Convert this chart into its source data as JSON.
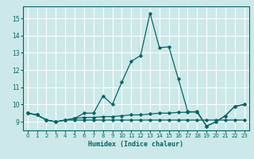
{
  "title": "",
  "xlabel": "Humidex (Indice chaleur)",
  "ylabel": "",
  "background_color": "#cce8e8",
  "grid_color": "#ffffff",
  "line_color": "#006666",
  "xlim": [
    -0.5,
    23.5
  ],
  "ylim": [
    8.5,
    15.7
  ],
  "yticks": [
    9,
    10,
    11,
    12,
    13,
    14,
    15
  ],
  "xticks": [
    0,
    1,
    2,
    3,
    4,
    5,
    6,
    7,
    8,
    9,
    10,
    11,
    12,
    13,
    14,
    15,
    16,
    17,
    18,
    19,
    20,
    21,
    22,
    23
  ],
  "series": [
    [
      9.5,
      9.4,
      9.1,
      9.0,
      9.1,
      9.2,
      9.5,
      9.5,
      10.5,
      10.0,
      11.3,
      12.5,
      12.85,
      15.3,
      13.3,
      13.35,
      11.5,
      9.6,
      9.55,
      8.75,
      9.0,
      9.35,
      9.9,
      10.0
    ],
    [
      9.5,
      9.4,
      9.1,
      9.0,
      9.1,
      9.2,
      9.25,
      9.25,
      9.3,
      9.3,
      9.35,
      9.4,
      9.4,
      9.45,
      9.5,
      9.5,
      9.55,
      9.55,
      9.6,
      8.75,
      9.0,
      9.35,
      9.9,
      10.0
    ],
    [
      9.5,
      9.4,
      9.1,
      9.0,
      9.1,
      9.1,
      9.1,
      9.1,
      9.1,
      9.1,
      9.1,
      9.1,
      9.1,
      9.1,
      9.1,
      9.1,
      9.1,
      9.1,
      9.1,
      9.1,
      9.1,
      9.1,
      9.1,
      9.1
    ]
  ]
}
